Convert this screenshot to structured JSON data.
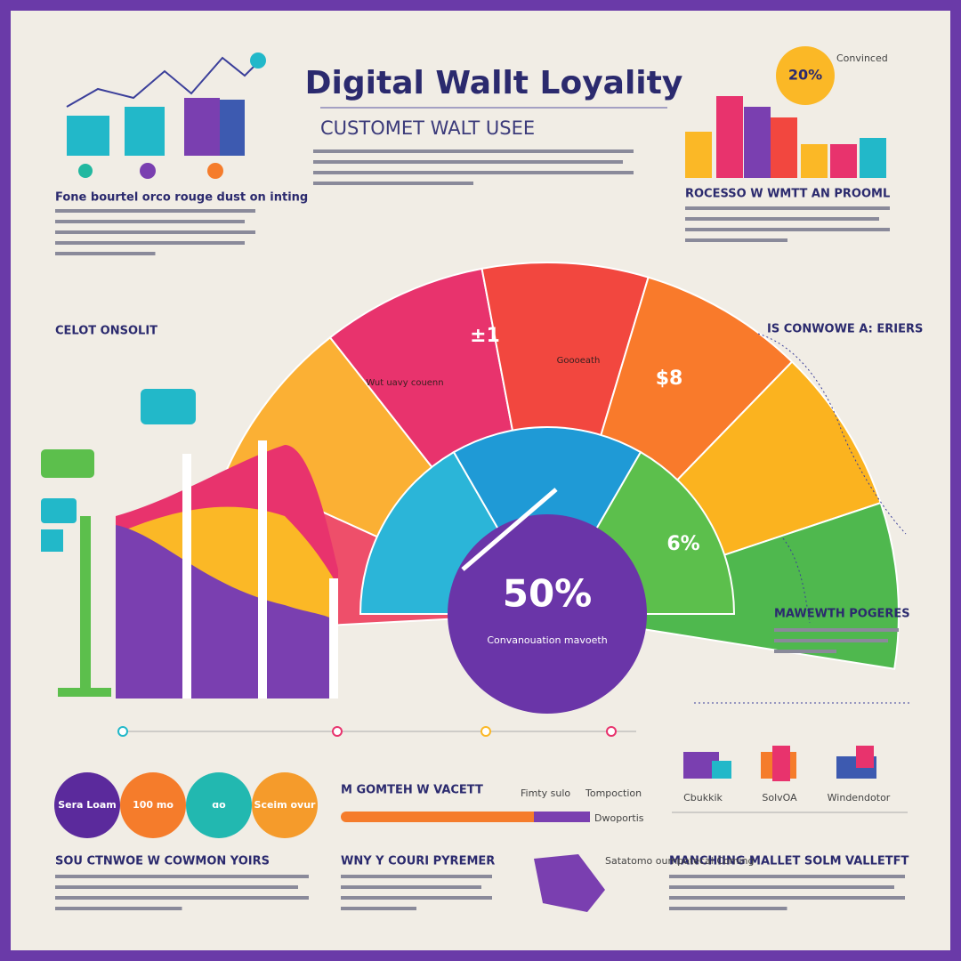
{
  "header": {
    "title": "Digital Wallt Loyality",
    "subtitle": "CUSTOMET WALT USEE"
  },
  "top_left": {
    "heading": "Fone bourtel orco rouge dust on inting"
  },
  "top_right": {
    "badge": "20%",
    "badge_note": "Convinced",
    "heading": "ROCESSO W WMTT AN PROOML"
  },
  "gauge": {
    "center_value": "50%",
    "center_caption": "Convanouation mavoeth",
    "wedge_labels": [
      "±1",
      "$8",
      "6%"
    ],
    "wedge_captions": [
      "Wut uavy couenn",
      "Goooeath"
    ]
  },
  "side_labels": {
    "left": "CELOT ONSOLIT",
    "right_top": "IS CONWOWE A: ERIERS",
    "right_bottom": "MAWEWTH POGERES"
  },
  "bottom": {
    "circles": [
      "Sera Loam",
      "100 mo",
      "ɑo",
      "Sceim ovur"
    ],
    "progress_heading": "M GOMTEH W VACETT",
    "progress_labels": [
      "Fimty sulo",
      "Tompoction",
      "Dwoportis"
    ],
    "icon_labels": [
      "Cbukkik",
      "SolvOA",
      "Windendotor"
    ],
    "headings": [
      "SOU CTNWOE W COWMON YOIRS",
      "WNY Y COURI PYREMER",
      "MANCHIING MALLET SOLM VALLETFT"
    ],
    "note": "Satatomo oumpotecal Coming"
  }
}
